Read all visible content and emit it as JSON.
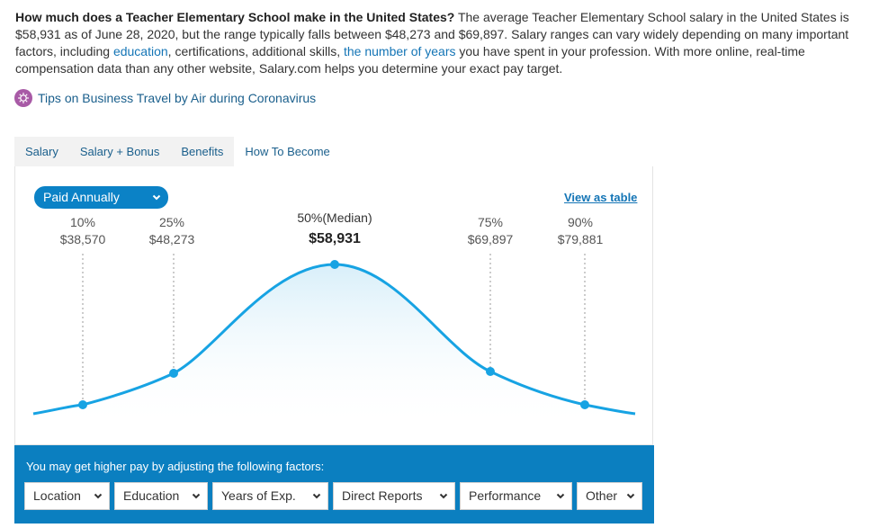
{
  "intro": {
    "question": "How much does a Teacher Elementary School make in the United States?",
    "text_a": " The average Teacher Elementary School salary in the United States is $58,931 as of June 28, 2020, but the range typically falls between $48,273 and $69,897. Salary ranges can vary widely depending on many important factors, including ",
    "link_education": "education",
    "text_b": ", certifications, additional skills, ",
    "link_years": "the number of years",
    "text_c": " you have spent in your profession. With more online, real-time compensation data than any other website, Salary.com helps you determine your exact pay target."
  },
  "tips": {
    "label": "Tips on Business Travel by Air during Coronavirus",
    "icon": "virus-icon"
  },
  "tabs": [
    {
      "label": "Salary"
    },
    {
      "label": "Salary + Bonus"
    },
    {
      "label": "Benefits"
    },
    {
      "label": "How To Become"
    }
  ],
  "pay_period": {
    "label": "Paid Annually"
  },
  "view_as_table": "View as table",
  "percentiles": [
    {
      "label": "10%",
      "value": "$38,570"
    },
    {
      "label": "25%",
      "value": "$48,273"
    },
    {
      "label": "50%(Median)",
      "value": "$58,931"
    },
    {
      "label": "75%",
      "value": "$69,897"
    },
    {
      "label": "90%",
      "value": "$79,881"
    }
  ],
  "factors": {
    "message": "You may get higher pay by adjusting the following factors:",
    "options": [
      "Location",
      "Education",
      "Years of Exp.",
      "Direct Reports",
      "Performance",
      "Other"
    ]
  },
  "colors": {
    "accent": "#0b82c6",
    "curve": "#17a3e3",
    "panel_blue": "#0b7fc0",
    "link": "#1475b6"
  }
}
